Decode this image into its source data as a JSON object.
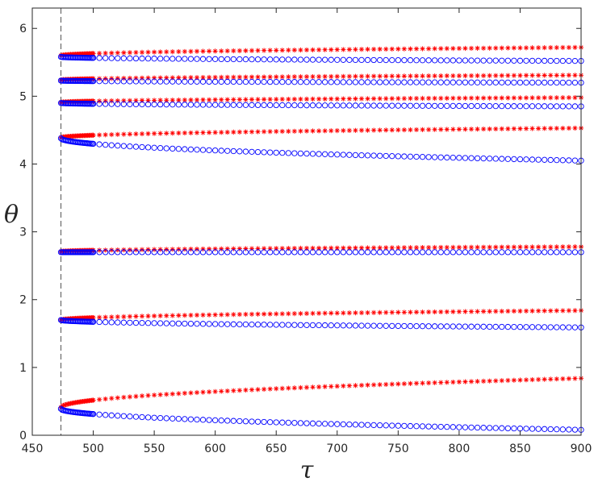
{
  "chart_data": {
    "type": "scatter",
    "xlabel": "τ",
    "ylabel": "θ",
    "xlim": [
      450,
      900
    ],
    "ylim": [
      0,
      6.3
    ],
    "xticks": [
      450,
      500,
      550,
      600,
      650,
      700,
      750,
      800,
      850,
      900
    ],
    "yticks": [
      0,
      1,
      2,
      3,
      4,
      5,
      6
    ],
    "grid": false,
    "legend": "none",
    "reference_line": {
      "x": 473.5,
      "style": "dashed",
      "color": "#555555"
    },
    "series": [
      {
        "marker": "star",
        "color": "#ff0000",
        "branches": [
          {
            "start": 0.41,
            "end": 0.84,
            "shape": "sqrt"
          },
          {
            "start": 1.7,
            "end": 1.84,
            "shape": "sqrt"
          },
          {
            "start": 2.71,
            "end": 2.78,
            "shape": "sqrt"
          },
          {
            "start": 4.39,
            "end": 4.53,
            "shape": "sqrt"
          },
          {
            "start": 4.91,
            "end": 4.98,
            "shape": "sqrt"
          },
          {
            "start": 5.24,
            "end": 5.31,
            "shape": "sqrt"
          },
          {
            "start": 5.6,
            "end": 5.72,
            "shape": "sqrt"
          }
        ]
      },
      {
        "marker": "circle",
        "color": "#0000ff",
        "branches": [
          {
            "start": 0.39,
            "end": 0.08,
            "shape": "sqrt"
          },
          {
            "start": 1.7,
            "end": 1.59,
            "shape": "sqrt"
          },
          {
            "start": 2.7,
            "end": 2.7,
            "shape": "sqrt"
          },
          {
            "start": 4.38,
            "end": 4.05,
            "shape": "sqrt"
          },
          {
            "start": 4.9,
            "end": 4.85,
            "shape": "sqrt"
          },
          {
            "start": 5.23,
            "end": 5.2,
            "shape": "sqrt"
          },
          {
            "start": 5.58,
            "end": 5.52,
            "shape": "sqrt"
          }
        ]
      }
    ],
    "x_points": {
      "start": 473.5,
      "end": 900,
      "dense_until": 500,
      "dense_step": 1.0,
      "sparse_step": 5
    }
  }
}
